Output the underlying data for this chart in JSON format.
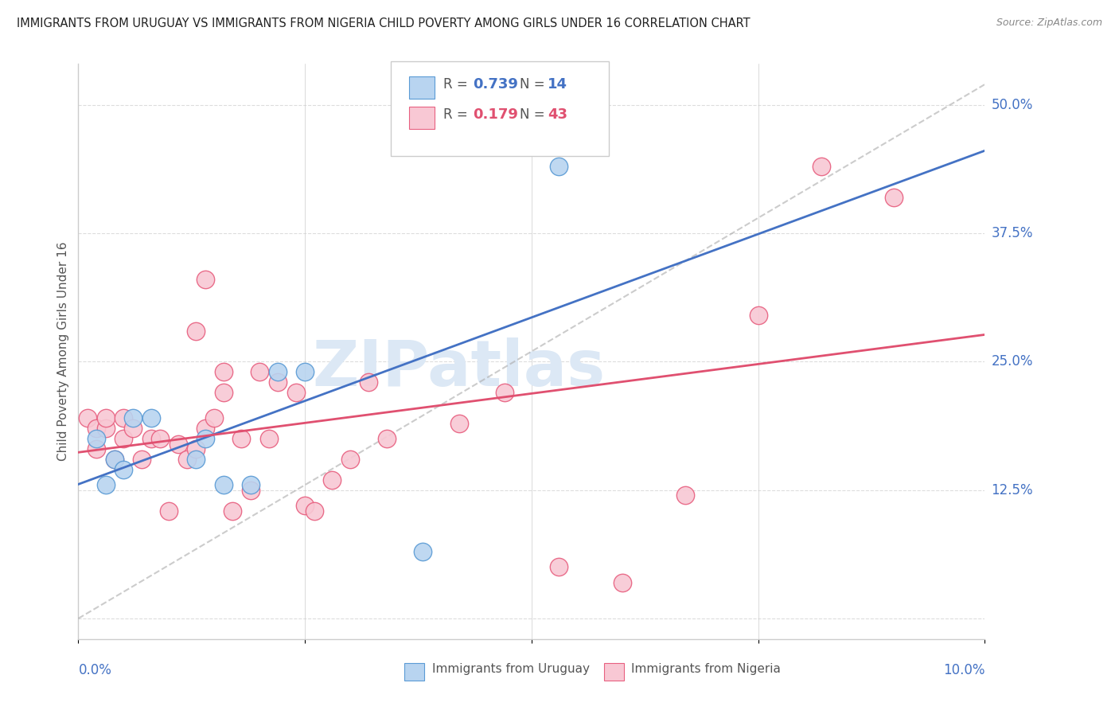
{
  "title": "IMMIGRANTS FROM URUGUAY VS IMMIGRANTS FROM NIGERIA CHILD POVERTY AMONG GIRLS UNDER 16 CORRELATION CHART",
  "source": "Source: ZipAtlas.com",
  "ylabel": "Child Poverty Among Girls Under 16",
  "yticks": [
    0.0,
    0.125,
    0.25,
    0.375,
    0.5
  ],
  "ytick_labels": [
    "",
    "12.5%",
    "25.0%",
    "37.5%",
    "50.0%"
  ],
  "xlim": [
    0.0,
    0.1
  ],
  "ylim": [
    -0.02,
    0.54
  ],
  "r_uruguay": 0.739,
  "n_uruguay": 14,
  "r_nigeria": 0.179,
  "n_nigeria": 43,
  "color_uruguay_fill": "#b8d4f0",
  "color_nigeria_fill": "#f8c8d4",
  "color_uruguay_edge": "#5b9bd5",
  "color_nigeria_edge": "#e86080",
  "color_uruguay_line": "#4472c4",
  "color_nigeria_line": "#e05070",
  "color_axis_labels": "#4472c4",
  "color_grid": "#dddddd",
  "color_title": "#222222",
  "color_source": "#888888",
  "watermark_text": "ZIPatlas",
  "watermark_color": "#dce8f5",
  "uruguay_x": [
    0.002,
    0.003,
    0.004,
    0.005,
    0.006,
    0.008,
    0.013,
    0.014,
    0.016,
    0.019,
    0.022,
    0.025,
    0.038,
    0.053
  ],
  "uruguay_y": [
    0.175,
    0.13,
    0.155,
    0.145,
    0.195,
    0.195,
    0.155,
    0.175,
    0.13,
    0.13,
    0.24,
    0.24,
    0.065,
    0.44
  ],
  "nigeria_x": [
    0.001,
    0.002,
    0.002,
    0.003,
    0.003,
    0.004,
    0.005,
    0.005,
    0.006,
    0.007,
    0.008,
    0.009,
    0.01,
    0.011,
    0.012,
    0.013,
    0.013,
    0.014,
    0.014,
    0.015,
    0.016,
    0.016,
    0.017,
    0.018,
    0.019,
    0.02,
    0.021,
    0.022,
    0.024,
    0.025,
    0.026,
    0.028,
    0.03,
    0.032,
    0.034,
    0.042,
    0.047,
    0.053,
    0.06,
    0.067,
    0.075,
    0.082,
    0.09
  ],
  "nigeria_y": [
    0.195,
    0.165,
    0.185,
    0.185,
    0.195,
    0.155,
    0.175,
    0.195,
    0.185,
    0.155,
    0.175,
    0.175,
    0.105,
    0.17,
    0.155,
    0.165,
    0.28,
    0.185,
    0.33,
    0.195,
    0.24,
    0.22,
    0.105,
    0.175,
    0.125,
    0.24,
    0.175,
    0.23,
    0.22,
    0.11,
    0.105,
    0.135,
    0.155,
    0.23,
    0.175,
    0.19,
    0.22,
    0.05,
    0.035,
    0.12,
    0.295,
    0.44,
    0.41
  ]
}
